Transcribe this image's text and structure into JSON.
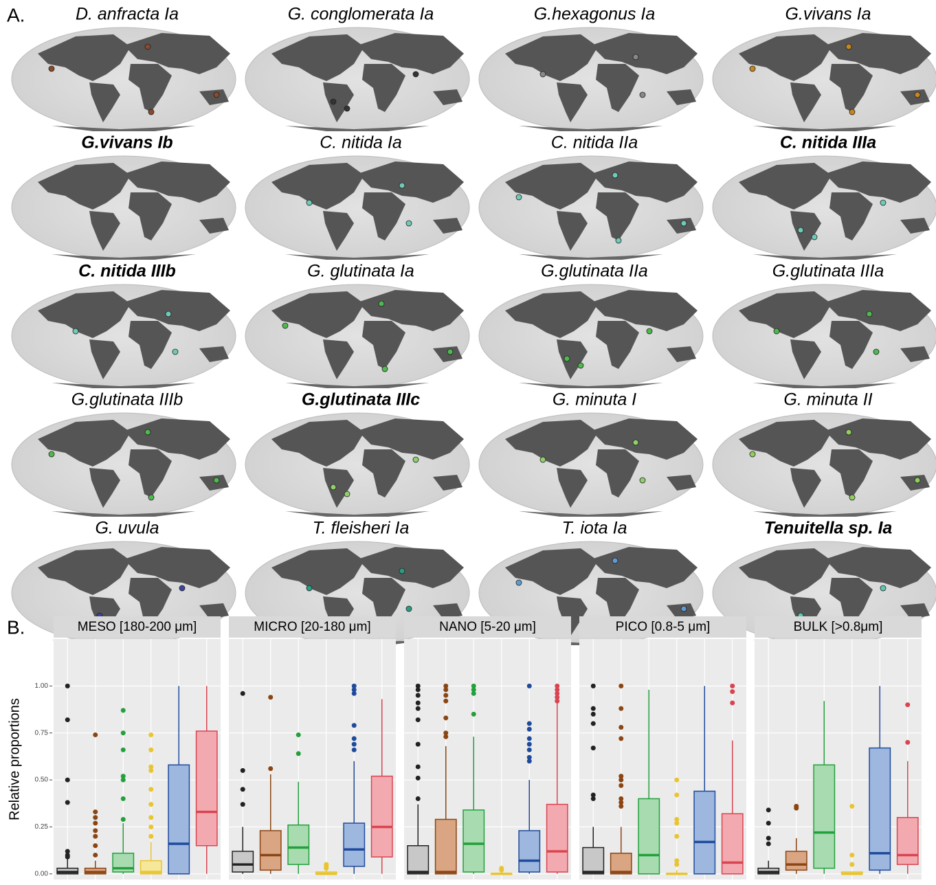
{
  "panel_a": {
    "label": "A.",
    "maps": [
      {
        "title": "D. anfracta Ia",
        "bold": false,
        "color": "#8b4a2b"
      },
      {
        "title": "G. conglomerata Ia",
        "bold": false,
        "color": "#333333"
      },
      {
        "title": "G.hexagonus Ia",
        "bold": false,
        "color": "#888888"
      },
      {
        "title": "G.vivans Ia",
        "bold": false,
        "color": "#c8861f"
      },
      {
        "title": "G.vivans Ib",
        "bold": true,
        "color": "#e29a7a"
      },
      {
        "title": "C. nitida Ia",
        "bold": false,
        "color": "#6fcab8"
      },
      {
        "title": "C. nitida IIa",
        "bold": false,
        "color": "#6fcab8"
      },
      {
        "title": "C. nitida IIIa",
        "bold": true,
        "color": "#6fcab8"
      },
      {
        "title": "C. nitida IIIb",
        "bold": true,
        "color": "#6fcab8"
      },
      {
        "title": "G. glutinata Ia",
        "bold": false,
        "color": "#4cbb4c"
      },
      {
        "title": "G.glutinata IIa",
        "bold": false,
        "color": "#4cbb4c"
      },
      {
        "title": "G.glutinata IIIa",
        "bold": false,
        "color": "#4cbb4c"
      },
      {
        "title": "G.glutinata IIIb",
        "bold": false,
        "color": "#4cbb4c"
      },
      {
        "title": "G.glutinata IIIc",
        "bold": true,
        "color": "#8fd06a"
      },
      {
        "title": "G. minuta I",
        "bold": false,
        "color": "#8fd06a"
      },
      {
        "title": "G. minuta II",
        "bold": false,
        "color": "#8fcf5a"
      },
      {
        "title": "G. uvula",
        "bold": false,
        "color": "#3c43a0"
      },
      {
        "title": "T. fleisheri Ia",
        "bold": false,
        "color": "#2a9c84"
      },
      {
        "title": "T. iota Ia",
        "bold": false,
        "color": "#5e9bd1"
      },
      {
        "title": "Tenuitella sp. Ia",
        "bold": true,
        "color": "#5bc9b0"
      }
    ]
  },
  "chart_data": {
    "type": "box",
    "label": "B.",
    "ylabel": "Relative proportions",
    "ylim": [
      -0.03,
      1.25
    ],
    "yticks": [
      {
        "value": 0,
        "label": "0.00"
      },
      {
        "value": 0.25,
        "label": "0.25"
      },
      {
        "value": 0.5,
        "label": "0.50"
      },
      {
        "value": 0.75,
        "label": "0.75"
      },
      {
        "value": 1,
        "label": "1.00"
      }
    ],
    "grid": true,
    "series": [
      {
        "color": "#222222",
        "fill": "#c8c8c8"
      },
      {
        "color": "#8b4513",
        "fill": "#d9a582"
      },
      {
        "color": "#22a03c",
        "fill": "#a8dcb0"
      },
      {
        "color": "#e8c530",
        "fill": "#f7e79a"
      },
      {
        "color": "#1f4a9c",
        "fill": "#9db7de"
      },
      {
        "color": "#d94450",
        "fill": "#f2aab0"
      }
    ],
    "facets": [
      {
        "name": "MESO [180-200 μm]",
        "boxes": [
          {
            "min": 0,
            "q1": 0,
            "median": 0.01,
            "q3": 0.03,
            "max": 0.08,
            "outliers": [
              1.0,
              0.82,
              0.5,
              0.38,
              0.12,
              0.1,
              0.09
            ]
          },
          {
            "min": 0,
            "q1": 0,
            "median": 0.01,
            "q3": 0.03,
            "max": 0.07,
            "outliers": [
              0.74,
              0.33,
              0.3,
              0.27,
              0.23,
              0.2,
              0.15,
              0.1
            ]
          },
          {
            "min": 0,
            "q1": 0.01,
            "median": 0.03,
            "q3": 0.11,
            "max": 0.27,
            "outliers": [
              0.87,
              0.75,
              0.66,
              0.52,
              0.5,
              0.4,
              0.29
            ]
          },
          {
            "min": 0,
            "q1": 0,
            "median": 0.01,
            "q3": 0.07,
            "max": 0.17,
            "outliers": [
              0.74,
              0.66,
              0.57,
              0.55,
              0.45,
              0.37,
              0.3,
              0.25,
              0.2
            ]
          },
          {
            "min": 0,
            "q1": 0,
            "median": 0.16,
            "q3": 0.58,
            "max": 1.0,
            "outliers": []
          },
          {
            "min": 0,
            "q1": 0.15,
            "median": 0.33,
            "q3": 0.76,
            "max": 1.0,
            "outliers": []
          }
        ]
      },
      {
        "name": "MICRO [20-180 μm]",
        "boxes": [
          {
            "min": 0,
            "q1": 0.01,
            "median": 0.05,
            "q3": 0.12,
            "max": 0.25,
            "outliers": [
              0.96,
              0.55,
              0.45,
              0.37
            ]
          },
          {
            "min": 0,
            "q1": 0.02,
            "median": 0.1,
            "q3": 0.23,
            "max": 0.53,
            "outliers": [
              0.94,
              0.56
            ]
          },
          {
            "min": 0,
            "q1": 0.05,
            "median": 0.14,
            "q3": 0.26,
            "max": 0.49,
            "outliers": [
              0.74,
              0.64
            ]
          },
          {
            "min": 0,
            "q1": 0,
            "median": 0,
            "q3": 0.01,
            "max": 0.02,
            "outliers": [
              0.05,
              0.04,
              0.03
            ]
          },
          {
            "min": 0,
            "q1": 0.04,
            "median": 0.13,
            "q3": 0.27,
            "max": 0.6,
            "outliers": [
              1.0,
              0.98,
              0.96,
              0.79,
              0.72,
              0.69,
              0.66
            ]
          },
          {
            "min": 0,
            "q1": 0.09,
            "median": 0.25,
            "q3": 0.52,
            "max": 0.93,
            "outliers": []
          }
        ]
      },
      {
        "name": "NANO [5-20 μm]",
        "boxes": [
          {
            "min": 0,
            "q1": 0,
            "median": 0.01,
            "q3": 0.15,
            "max": 0.37,
            "outliers": [
              1.0,
              0.98,
              0.95,
              0.91,
              0.88,
              0.82,
              0.69,
              0.57,
              0.51,
              0.4
            ]
          },
          {
            "min": 0,
            "q1": 0,
            "median": 0.01,
            "q3": 0.29,
            "max": 0.68,
            "outliers": [
              1.0,
              0.98,
              0.95,
              0.92,
              0.83,
              0.75,
              0.73
            ]
          },
          {
            "min": 0,
            "q1": 0.01,
            "median": 0.16,
            "q3": 0.34,
            "max": 0.73,
            "outliers": [
              1.0,
              0.98,
              0.96,
              0.85
            ]
          },
          {
            "min": 0,
            "q1": 0,
            "median": 0,
            "q3": 0,
            "max": 0.01,
            "outliers": [
              0.03,
              0.02
            ]
          },
          {
            "min": 0,
            "q1": 0.01,
            "median": 0.07,
            "q3": 0.23,
            "max": 0.5,
            "outliers": [
              1.0,
              0.8,
              0.77,
              0.72,
              0.69,
              0.66,
              0.62,
              0.6
            ]
          },
          {
            "min": 0,
            "q1": 0.01,
            "median": 0.12,
            "q3": 0.37,
            "max": 0.96,
            "outliers": [
              1.0,
              0.98,
              0.96,
              0.94,
              0.92
            ]
          }
        ]
      },
      {
        "name": "PICO [0.8-5 μm]",
        "boxes": [
          {
            "min": 0,
            "q1": 0,
            "median": 0.01,
            "q3": 0.14,
            "max": 0.25,
            "outliers": [
              1.0,
              0.88,
              0.85,
              0.8,
              0.67,
              0.42,
              0.4
            ]
          },
          {
            "min": 0,
            "q1": 0,
            "median": 0.01,
            "q3": 0.11,
            "max": 0.25,
            "outliers": [
              1.0,
              0.88,
              0.78,
              0.72,
              0.52,
              0.5,
              0.47,
              0.4,
              0.38,
              0.36
            ]
          },
          {
            "min": 0,
            "q1": 0,
            "median": 0.1,
            "q3": 0.4,
            "max": 0.98,
            "outliers": []
          },
          {
            "min": 0,
            "q1": 0,
            "median": 0,
            "q3": 0,
            "max": 0.02,
            "outliers": [
              0.5,
              0.42,
              0.29,
              0.27,
              0.2,
              0.07,
              0.05
            ]
          },
          {
            "min": 0,
            "q1": 0,
            "median": 0.17,
            "q3": 0.44,
            "max": 1.0,
            "outliers": []
          },
          {
            "min": 0,
            "q1": 0,
            "median": 0.06,
            "q3": 0.32,
            "max": 0.71,
            "outliers": [
              1.0,
              0.97,
              0.91
            ]
          }
        ]
      },
      {
        "name": "BULK [>0.8μm]",
        "boxes": [
          {
            "min": 0,
            "q1": 0,
            "median": 0.01,
            "q3": 0.03,
            "max": 0.07,
            "outliers": [
              0.34,
              0.27,
              0.19,
              0.16
            ]
          },
          {
            "min": 0,
            "q1": 0.02,
            "median": 0.05,
            "q3": 0.12,
            "max": 0.19,
            "outliers": [
              0.36,
              0.35
            ]
          },
          {
            "min": 0,
            "q1": 0.03,
            "median": 0.22,
            "q3": 0.58,
            "max": 0.92,
            "outliers": []
          },
          {
            "min": 0,
            "q1": 0,
            "median": 0,
            "q3": 0.01,
            "max": 0.01,
            "outliers": [
              0.36,
              0.1,
              0.05
            ]
          },
          {
            "min": 0,
            "q1": 0.02,
            "median": 0.11,
            "q3": 0.67,
            "max": 1.0,
            "outliers": []
          },
          {
            "min": 0,
            "q1": 0.05,
            "median": 0.1,
            "q3": 0.3,
            "max": 0.6,
            "outliers": [
              0.9,
              0.7
            ]
          }
        ]
      }
    ]
  }
}
